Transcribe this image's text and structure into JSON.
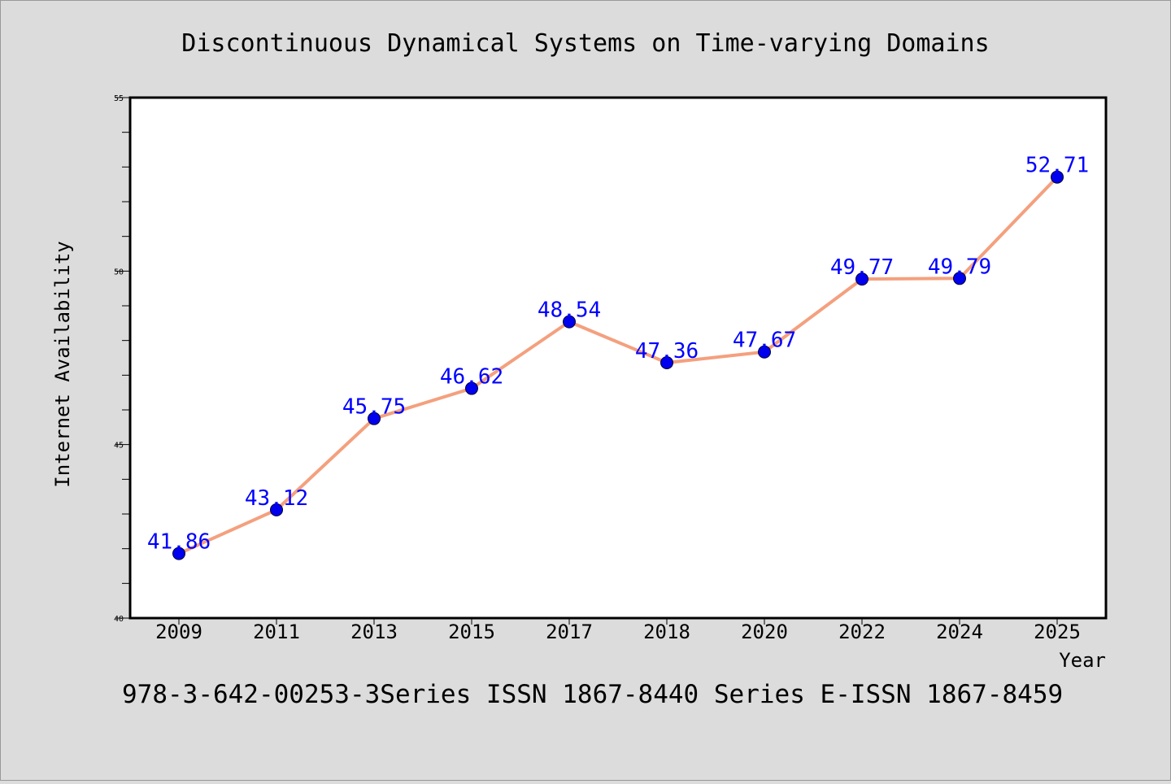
{
  "chart_data": {
    "type": "line",
    "title": "Discontinuous Dynamical Systems on Time-varying Domains",
    "xlabel": "Year",
    "ylabel": "Internet Availability",
    "footnote": "978-3-642-00253-3Series ISSN 1867-8440 Series E-ISSN 1867-8459",
    "categories": [
      "2009",
      "2011",
      "2013",
      "2015",
      "2017",
      "2018",
      "2020",
      "2022",
      "2024",
      "2025"
    ],
    "series": [
      {
        "values": [
          41.86,
          43.12,
          45.75,
          46.62,
          48.54,
          47.36,
          47.67,
          49.77,
          49.79,
          52.71
        ],
        "labels": [
          "41.86",
          "43.12",
          "45.75",
          "46.62",
          "48.54",
          "47.36",
          "47.67",
          "49.77",
          "49.79",
          "52.71"
        ],
        "line_color": "#f4a07e",
        "marker_color": "#0000ee",
        "label_color": "#0000ff"
      }
    ],
    "ylim": [
      40,
      55
    ],
    "y_ticks": [
      "40",
      "45",
      "50",
      "55"
    ],
    "grid": false,
    "legend": "none"
  }
}
